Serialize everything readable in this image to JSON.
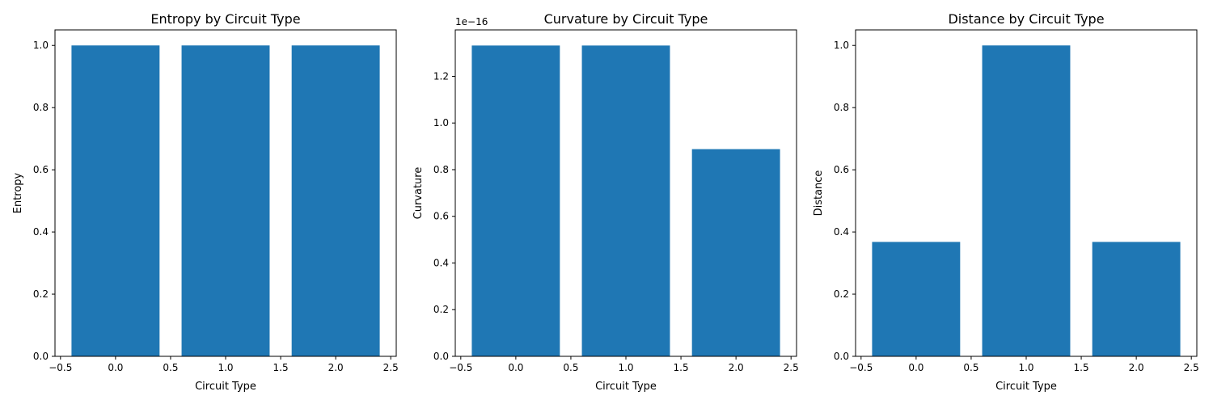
{
  "chart_data": [
    {
      "type": "bar",
      "title": "Entropy by Circuit Type",
      "xlabel": "Circuit Type",
      "ylabel": "Entropy",
      "x": [
        0,
        1,
        2
      ],
      "values": [
        1.0,
        1.0,
        1.0
      ],
      "bar_width": 0.8,
      "xlim": [
        -0.55,
        2.55
      ],
      "ylim": [
        0,
        1.05
      ],
      "xticks": [
        -0.5,
        0.0,
        0.5,
        1.0,
        1.5,
        2.0,
        2.5
      ],
      "xtick_labels": [
        "−0.5",
        "0.0",
        "0.5",
        "1.0",
        "1.5",
        "2.0",
        "2.5"
      ],
      "yticks": [
        0.0,
        0.2,
        0.4,
        0.6,
        0.8,
        1.0
      ],
      "ytick_labels": [
        "0.0",
        "0.2",
        "0.4",
        "0.6",
        "0.8",
        "1.0"
      ],
      "offset_label": "",
      "color": "#1f77b4",
      "grid": false
    },
    {
      "type": "bar",
      "title": "Curvature by Circuit Type",
      "xlabel": "Circuit Type",
      "ylabel": "Curvature",
      "x": [
        0,
        1,
        2
      ],
      "values": [
        1.332e-16,
        1.332e-16,
        8.88e-17
      ],
      "bar_width": 0.8,
      "xlim": [
        -0.55,
        2.55
      ],
      "ylim": [
        0,
        1.399e-16
      ],
      "xticks": [
        -0.5,
        0.0,
        0.5,
        1.0,
        1.5,
        2.0,
        2.5
      ],
      "xtick_labels": [
        "−0.5",
        "0.0",
        "0.5",
        "1.0",
        "1.5",
        "2.0",
        "2.5"
      ],
      "yticks": [
        0.0,
        2e-17,
        4e-17,
        6e-17,
        8e-17,
        1e-16,
        1.2e-16
      ],
      "ytick_labels": [
        "0.0",
        "0.2",
        "0.4",
        "0.6",
        "0.8",
        "1.0",
        "1.2"
      ],
      "offset_label": "1e−16",
      "color": "#1f77b4",
      "grid": false
    },
    {
      "type": "bar",
      "title": "Distance by Circuit Type",
      "xlabel": "Circuit Type",
      "ylabel": "Distance",
      "x": [
        0,
        1,
        2
      ],
      "values": [
        0.368,
        1.0,
        0.368
      ],
      "bar_width": 0.8,
      "xlim": [
        -0.55,
        2.55
      ],
      "ylim": [
        0,
        1.05
      ],
      "xticks": [
        -0.5,
        0.0,
        0.5,
        1.0,
        1.5,
        2.0,
        2.5
      ],
      "xtick_labels": [
        "−0.5",
        "0.0",
        "0.5",
        "1.0",
        "1.5",
        "2.0",
        "2.5"
      ],
      "yticks": [
        0.0,
        0.2,
        0.4,
        0.6,
        0.8,
        1.0
      ],
      "ytick_labels": [
        "0.0",
        "0.2",
        "0.4",
        "0.6",
        "0.8",
        "1.0"
      ],
      "offset_label": "",
      "color": "#1f77b4",
      "grid": false
    }
  ]
}
